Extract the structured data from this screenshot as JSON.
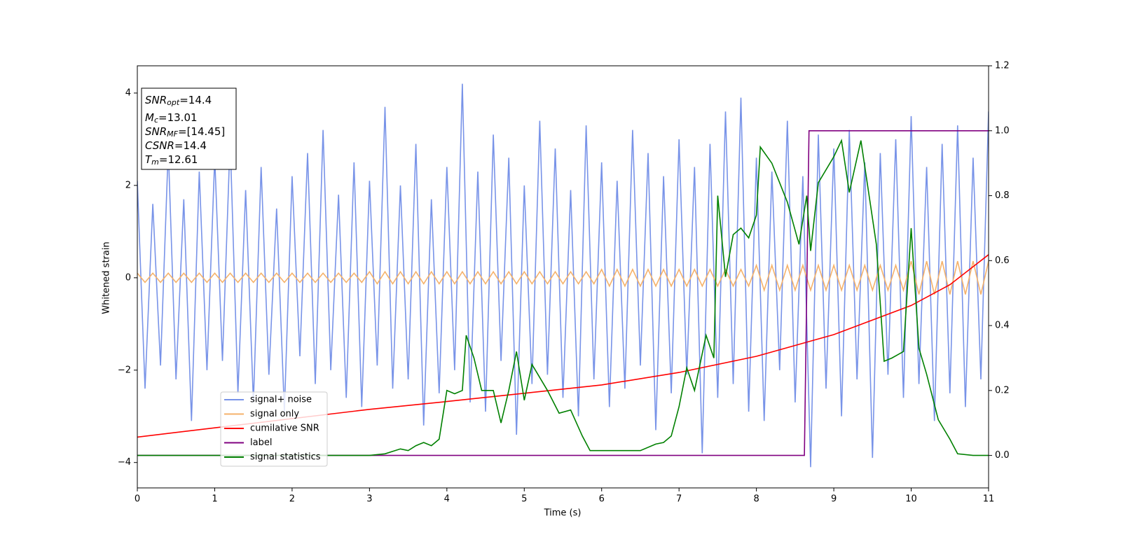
{
  "chart_data": {
    "type": "line",
    "xlabel": "Time (s)",
    "ylabel": "Whitened strain",
    "xlim": [
      0,
      11
    ],
    "ylim": [
      -4.55,
      4.59
    ],
    "y2lim": [
      -0.1,
      1.2
    ],
    "xticks": [
      0,
      1,
      2,
      3,
      4,
      5,
      6,
      7,
      8,
      9,
      10,
      11
    ],
    "yticks": [
      {
        "value": -4,
        "label": "−4"
      },
      {
        "value": -2,
        "label": "−2"
      },
      0,
      2,
      4
    ],
    "y2ticks": [
      {
        "value": 0,
        "label": "0.0"
      },
      0.2,
      0.4,
      0.6,
      0.8,
      {
        "value": 1,
        "label": "1.0"
      },
      1.2
    ],
    "grid": false,
    "legend": "lower left",
    "annotations": [
      {
        "text": "SNR",
        "sub": "opt",
        "value": "=14.4"
      },
      {
        "text": "M",
        "sub": "c",
        "value": "=13.01"
      },
      {
        "text": "SNR",
        "sub": "MF",
        "value": "=[14.45]"
      },
      {
        "text": "CSNR",
        "value": "=14.4"
      },
      {
        "text": "T",
        "sub": "m",
        "value": "=12.61"
      }
    ],
    "series": [
      {
        "name": "signal+ noise",
        "color": "#7893e8",
        "x": [
          0,
          0.1,
          0.2,
          0.3,
          0.4,
          0.5,
          0.6,
          0.7,
          0.8,
          0.9,
          1,
          1.1,
          1.2,
          1.3,
          1.4,
          1.5,
          1.6,
          1.7,
          1.8,
          1.9,
          2,
          2.1,
          2.2,
          2.3,
          2.4,
          2.5,
          2.6,
          2.7,
          2.8,
          2.9,
          3,
          3.1,
          3.2,
          3.3,
          3.4,
          3.5,
          3.6,
          3.7,
          3.8,
          3.9,
          4,
          4.1,
          4.2,
          4.3,
          4.4,
          4.5,
          4.6,
          4.7,
          4.8,
          4.9,
          5,
          5.1,
          5.2,
          5.3,
          5.4,
          5.5,
          5.6,
          5.7,
          5.8,
          5.9,
          6,
          6.1,
          6.2,
          6.3,
          6.4,
          6.5,
          6.6,
          6.7,
          6.8,
          6.9,
          7,
          7.1,
          7.2,
          7.3,
          7.4,
          7.5,
          7.6,
          7.7,
          7.8,
          7.9,
          8,
          8.1,
          8.2,
          8.3,
          8.4,
          8.5,
          8.6,
          8.7,
          8.8,
          8.9,
          9,
          9.1,
          9.2,
          9.3,
          9.4,
          9.5,
          9.6,
          9.7,
          9.8,
          9.9,
          10,
          10.1,
          10.2,
          10.3,
          10.4,
          10.5,
          10.6,
          10.7,
          10.8,
          10.9,
          11
        ],
        "values": [
          2.1,
          -2.4,
          1.6,
          -1.9,
          2.8,
          -2.2,
          1.7,
          -3.1,
          2.3,
          -2.0,
          2.6,
          -1.8,
          3.0,
          -2.5,
          1.9,
          -2.7,
          2.4,
          -2.1,
          1.5,
          -2.9,
          2.2,
          -1.7,
          2.7,
          -2.3,
          3.2,
          -2.0,
          1.8,
          -2.6,
          2.5,
          -2.8,
          2.1,
          -1.9,
          3.7,
          -2.4,
          2.0,
          -2.2,
          2.9,
          -3.2,
          1.7,
          -2.5,
          2.4,
          -2.0,
          4.2,
          -2.7,
          2.3,
          -2.9,
          3.1,
          -1.8,
          2.6,
          -3.4,
          2.0,
          -2.3,
          3.4,
          -2.1,
          2.8,
          -2.6,
          1.9,
          -3.0,
          3.3,
          -2.2,
          2.5,
          -2.8,
          2.1,
          -2.4,
          3.2,
          -1.9,
          2.7,
          -3.3,
          2.2,
          -2.5,
          3.0,
          -2.1,
          2.4,
          -3.8,
          2.9,
          -2.6,
          3.6,
          -2.3,
          3.9,
          -2.9,
          2.6,
          -3.1,
          2.3,
          -2.0,
          3.4,
          -2.7,
          2.2,
          -4.1,
          3.1,
          -2.4,
          2.8,
          -3.0,
          3.2,
          -2.2,
          2.5,
          -3.9,
          2.7,
          -2.1,
          3.0,
          -2.6,
          3.5,
          -2.3,
          2.4,
          -3.1,
          2.9,
          -2.5,
          3.3,
          -2.8,
          2.6,
          -2.2,
          3.6
        ]
      },
      {
        "name": "signal only",
        "color": "#f5b26b",
        "x": [
          0,
          0.1,
          0.2,
          0.3,
          0.4,
          0.5,
          0.6,
          0.7,
          0.8,
          0.9,
          1,
          1.1,
          1.2,
          1.3,
          1.4,
          1.5,
          1.6,
          1.7,
          1.8,
          1.9,
          2,
          2.1,
          2.2,
          2.3,
          2.4,
          2.5,
          2.6,
          2.7,
          2.8,
          2.9,
          3,
          3.1,
          3.2,
          3.3,
          3.4,
          3.5,
          3.6,
          3.7,
          3.8,
          3.9,
          4,
          4.1,
          4.2,
          4.3,
          4.4,
          4.5,
          4.6,
          4.7,
          4.8,
          4.9,
          5,
          5.1,
          5.2,
          5.3,
          5.4,
          5.5,
          5.6,
          5.7,
          5.8,
          5.9,
          6,
          6.1,
          6.2,
          6.3,
          6.4,
          6.5,
          6.6,
          6.7,
          6.8,
          6.9,
          7,
          7.1,
          7.2,
          7.3,
          7.4,
          7.5,
          7.6,
          7.7,
          7.8,
          7.9,
          8,
          8.1,
          8.2,
          8.3,
          8.4,
          8.5,
          8.6,
          8.7,
          8.8,
          8.9,
          9,
          9.1,
          9.2,
          9.3,
          9.4,
          9.5,
          9.6,
          9.7,
          9.8,
          9.9,
          10,
          10.1,
          10.2,
          10.3,
          10.4,
          10.5,
          10.6,
          10.7,
          10.8,
          10.9,
          11
        ],
        "values": [
          0.1,
          -0.1,
          0.1,
          -0.1,
          0.1,
          -0.1,
          0.1,
          -0.1,
          0.1,
          -0.1,
          0.1,
          -0.1,
          0.1,
          -0.1,
          0.1,
          -0.1,
          0.1,
          -0.1,
          0.1,
          -0.1,
          0.1,
          -0.1,
          0.1,
          -0.1,
          0.1,
          -0.1,
          0.1,
          -0.1,
          0.1,
          -0.1,
          0.13,
          -0.13,
          0.13,
          -0.13,
          0.13,
          -0.13,
          0.13,
          -0.13,
          0.13,
          -0.13,
          0.13,
          -0.13,
          0.13,
          -0.13,
          0.13,
          -0.13,
          0.13,
          -0.13,
          0.13,
          -0.13,
          0.13,
          -0.13,
          0.13,
          -0.13,
          0.13,
          -0.13,
          0.13,
          -0.13,
          0.13,
          -0.13,
          0.18,
          -0.18,
          0.18,
          -0.18,
          0.18,
          -0.18,
          0.18,
          -0.18,
          0.18,
          -0.18,
          0.18,
          -0.18,
          0.18,
          -0.18,
          0.18,
          -0.18,
          0.18,
          -0.18,
          0.18,
          -0.18,
          0.27,
          -0.27,
          0.27,
          -0.27,
          0.27,
          -0.27,
          0.27,
          -0.27,
          0.27,
          -0.27,
          0.27,
          -0.27,
          0.27,
          -0.27,
          0.27,
          -0.27,
          0.27,
          -0.27,
          0.27,
          -0.27,
          0.36,
          -0.36,
          0.36,
          -0.36,
          0.36,
          -0.36,
          0.36,
          -0.36,
          0.36,
          -0.36,
          0.36
        ]
      },
      {
        "name": "cumilative SNR",
        "color": "#ff0000",
        "x": [
          0,
          1,
          2,
          3,
          4,
          5,
          6,
          7,
          8,
          9,
          10,
          10.5,
          11
        ],
        "values": [
          -3.45,
          -3.25,
          -3.05,
          -2.85,
          -2.68,
          -2.5,
          -2.32,
          -2.05,
          -1.7,
          -1.23,
          -0.6,
          -0.15,
          0.5
        ]
      },
      {
        "name": "label",
        "color": "#800080",
        "axis": "y2",
        "x": [
          0,
          8.62,
          8.68,
          11
        ],
        "values": [
          0,
          0,
          1,
          1
        ]
      },
      {
        "name": "signal statistics",
        "color": "#008000",
        "axis": "y2",
        "x": [
          0,
          3,
          3.2,
          3.4,
          3.5,
          3.6,
          3.7,
          3.8,
          3.9,
          4.0,
          4.1,
          4.2,
          4.25,
          4.35,
          4.45,
          4.6,
          4.7,
          4.8,
          4.9,
          5.0,
          5.1,
          5.2,
          5.3,
          5.45,
          5.6,
          5.75,
          5.85,
          6.0,
          6.3,
          6.5,
          6.7,
          6.8,
          6.9,
          7.0,
          7.1,
          7.2,
          7.35,
          7.45,
          7.5,
          7.6,
          7.7,
          7.8,
          7.9,
          8.0,
          8.05,
          8.2,
          8.4,
          8.55,
          8.65,
          8.7,
          8.8,
          9.0,
          9.1,
          9.2,
          9.35,
          9.55,
          9.65,
          9.75,
          9.9,
          10.0,
          10.1,
          10.2,
          10.35,
          10.5,
          10.6,
          10.8,
          11
        ],
        "values": [
          0,
          0,
          0.005,
          0.02,
          0.015,
          0.03,
          0.04,
          0.03,
          0.05,
          0.2,
          0.19,
          0.2,
          0.37,
          0.3,
          0.2,
          0.2,
          0.1,
          0.2,
          0.32,
          0.17,
          0.28,
          0.24,
          0.2,
          0.13,
          0.14,
          0.06,
          0.015,
          0.015,
          0.015,
          0.015,
          0.035,
          0.04,
          0.06,
          0.15,
          0.27,
          0.2,
          0.37,
          0.3,
          0.8,
          0.55,
          0.68,
          0.7,
          0.67,
          0.74,
          0.95,
          0.9,
          0.78,
          0.65,
          0.8,
          0.63,
          0.84,
          0.92,
          0.97,
          0.81,
          0.97,
          0.65,
          0.29,
          0.3,
          0.32,
          0.7,
          0.33,
          0.25,
          0.11,
          0.05,
          0.005,
          0,
          0
        ]
      }
    ]
  }
}
